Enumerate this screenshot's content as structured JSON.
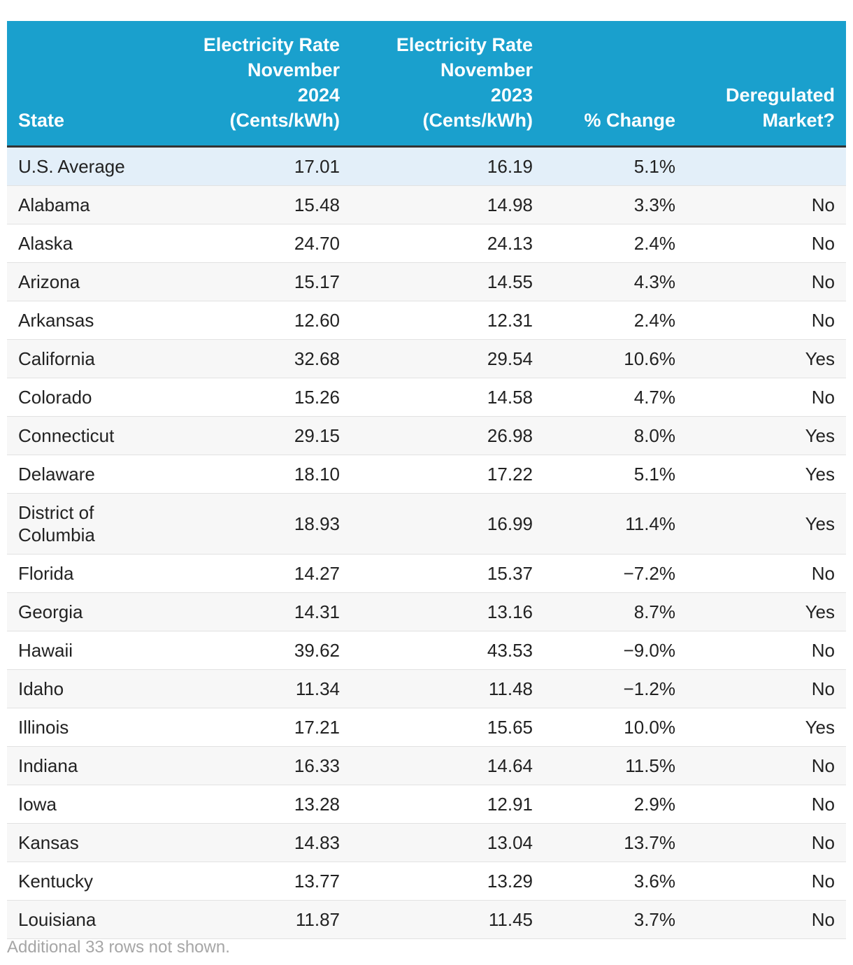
{
  "chart_data": {
    "type": "table",
    "columns": [
      "State",
      "Electricity Rate November 2024 (Cents/kWh)",
      "Electricity Rate November 2023 (Cents/kWh)",
      "% Change",
      "Deregulated Market?"
    ],
    "header_lines": [
      [
        "State"
      ],
      [
        "Electricity Rate",
        "November",
        "2024",
        "(Cents/kWh)"
      ],
      [
        "Electricity Rate",
        "November",
        "2023",
        "(Cents/kWh)"
      ],
      [
        "% Change"
      ],
      [
        "Deregulated",
        "Market?"
      ]
    ],
    "rows": [
      {
        "state": "U.S. Average",
        "rate_2024": "17.01",
        "rate_2023": "16.19",
        "pct_change": "5.1%",
        "deregulated": ""
      },
      {
        "state": "Alabama",
        "rate_2024": "15.48",
        "rate_2023": "14.98",
        "pct_change": "3.3%",
        "deregulated": "No"
      },
      {
        "state": "Alaska",
        "rate_2024": "24.70",
        "rate_2023": "24.13",
        "pct_change": "2.4%",
        "deregulated": "No"
      },
      {
        "state": "Arizona",
        "rate_2024": "15.17",
        "rate_2023": "14.55",
        "pct_change": "4.3%",
        "deregulated": "No"
      },
      {
        "state": "Arkansas",
        "rate_2024": "12.60",
        "rate_2023": "12.31",
        "pct_change": "2.4%",
        "deregulated": "No"
      },
      {
        "state": "California",
        "rate_2024": "32.68",
        "rate_2023": "29.54",
        "pct_change": "10.6%",
        "deregulated": "Yes"
      },
      {
        "state": "Colorado",
        "rate_2024": "15.26",
        "rate_2023": "14.58",
        "pct_change": "4.7%",
        "deregulated": "No"
      },
      {
        "state": "Connecticut",
        "rate_2024": "29.15",
        "rate_2023": "26.98",
        "pct_change": "8.0%",
        "deregulated": "Yes"
      },
      {
        "state": "Delaware",
        "rate_2024": "18.10",
        "rate_2023": "17.22",
        "pct_change": "5.1%",
        "deregulated": "Yes"
      },
      {
        "state": "District of Columbia",
        "state_lines": [
          "District of",
          "Columbia"
        ],
        "rate_2024": "18.93",
        "rate_2023": "16.99",
        "pct_change": "11.4%",
        "deregulated": "Yes"
      },
      {
        "state": "Florida",
        "rate_2024": "14.27",
        "rate_2023": "15.37",
        "pct_change": "−7.2%",
        "deregulated": "No"
      },
      {
        "state": "Georgia",
        "rate_2024": "14.31",
        "rate_2023": "13.16",
        "pct_change": "8.7%",
        "deregulated": "Yes"
      },
      {
        "state": "Hawaii",
        "rate_2024": "39.62",
        "rate_2023": "43.53",
        "pct_change": "−9.0%",
        "deregulated": "No"
      },
      {
        "state": "Idaho",
        "rate_2024": "11.34",
        "rate_2023": "11.48",
        "pct_change": "−1.2%",
        "deregulated": "No"
      },
      {
        "state": "Illinois",
        "rate_2024": "17.21",
        "rate_2023": "15.65",
        "pct_change": "10.0%",
        "deregulated": "Yes"
      },
      {
        "state": "Indiana",
        "rate_2024": "16.33",
        "rate_2023": "14.64",
        "pct_change": "11.5%",
        "deregulated": "No"
      },
      {
        "state": "Iowa",
        "rate_2024": "13.28",
        "rate_2023": "12.91",
        "pct_change": "2.9%",
        "deregulated": "No"
      },
      {
        "state": "Kansas",
        "rate_2024": "14.83",
        "rate_2023": "13.04",
        "pct_change": "13.7%",
        "deregulated": "No"
      },
      {
        "state": "Kentucky",
        "rate_2024": "13.77",
        "rate_2023": "13.29",
        "pct_change": "3.6%",
        "deregulated": "No"
      },
      {
        "state": "Louisiana",
        "rate_2024": "11.87",
        "rate_2023": "11.45",
        "pct_change": "3.7%",
        "deregulated": "No"
      }
    ],
    "footnote": "Additional 33 rows not shown."
  },
  "colors": {
    "header_bg": "#1aa0cd",
    "header_text": "#ffffff",
    "highlight_row_bg": "#e3eff9",
    "striped_row_bg": "#f7f7f7",
    "footnote_text": "#a6a6a6"
  }
}
